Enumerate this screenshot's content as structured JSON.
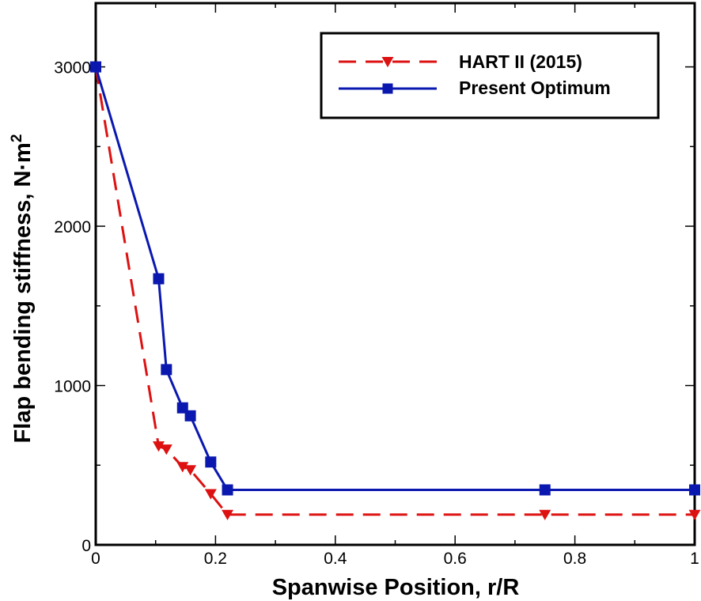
{
  "chart_data": {
    "type": "line",
    "xlabel": "Spanwise Position, r/R",
    "ylabel_main": "Flap bending stiffness, N·m",
    "ylabel_sup": "2",
    "xlim": [
      0,
      1
    ],
    "ylim": [
      0,
      3400
    ],
    "x_ticks": [
      0,
      0.2,
      0.4,
      0.6,
      0.8,
      1
    ],
    "x_tick_labels": [
      "0",
      "0.2",
      "0.4",
      "0.6",
      "0.8",
      "1"
    ],
    "y_ticks": [
      0,
      1000,
      2000,
      3000
    ],
    "y_tick_labels": [
      "0",
      "1000",
      "2000",
      "3000"
    ],
    "legend_position": "top-right",
    "series": [
      {
        "name": "HART II (2015)",
        "color": "#dd1111",
        "line": "dashed",
        "marker": "triangle-down",
        "x": [
          0,
          0.105,
          0.118,
          0.145,
          0.158,
          0.192,
          0.22,
          0.75,
          1.0
        ],
        "y": [
          3000,
          620,
          600,
          490,
          470,
          320,
          190,
          190,
          190
        ]
      },
      {
        "name": "Present Optimum",
        "color": "#0a18b0",
        "line": "solid",
        "marker": "square",
        "x": [
          0,
          0.105,
          0.118,
          0.145,
          0.158,
          0.192,
          0.22,
          0.75,
          1.0
        ],
        "y": [
          3000,
          1670,
          1100,
          860,
          810,
          520,
          345,
          345,
          345
        ]
      }
    ]
  }
}
